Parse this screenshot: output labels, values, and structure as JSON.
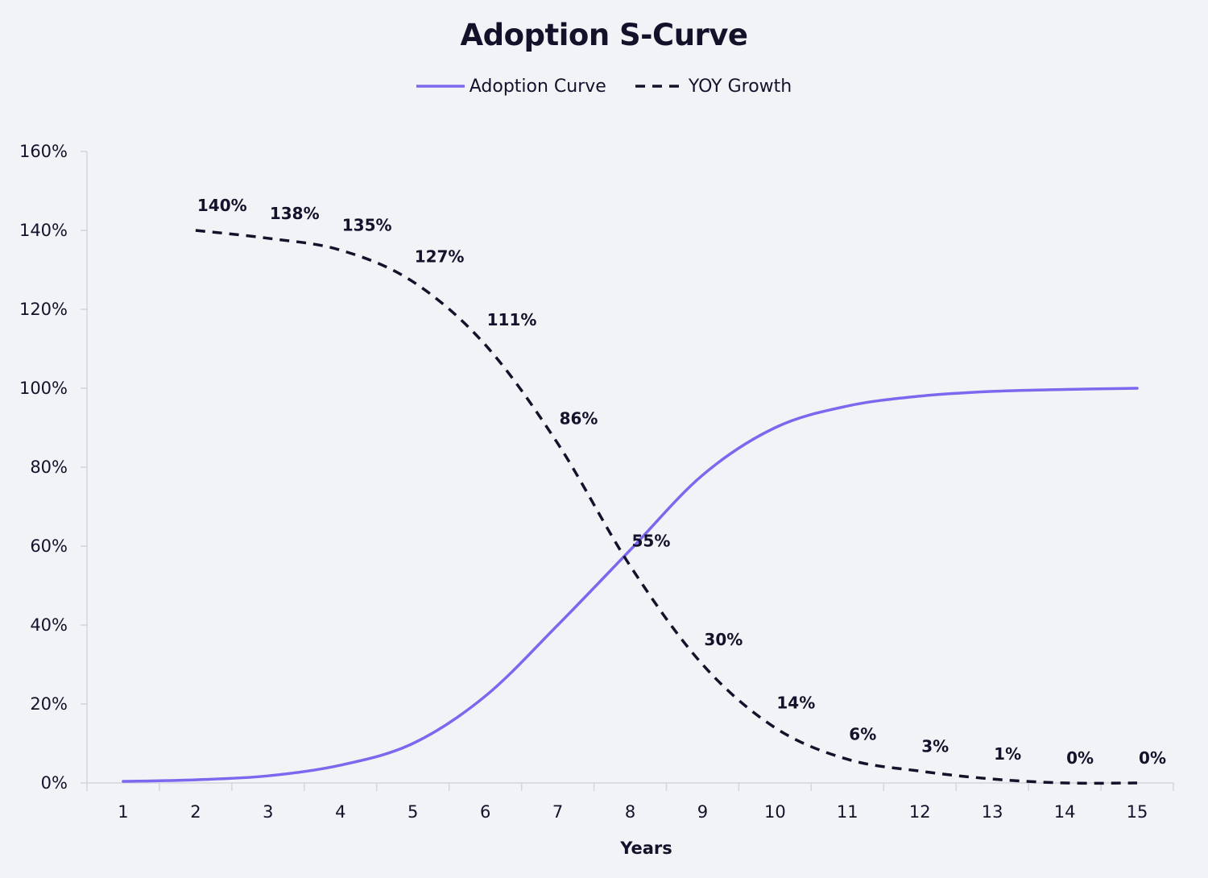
{
  "chart_data": {
    "type": "line",
    "title": "Adoption S-Curve",
    "xlabel": "Years",
    "ylabel": "",
    "x": [
      1,
      2,
      3,
      4,
      5,
      6,
      7,
      8,
      9,
      10,
      11,
      12,
      13,
      14,
      15
    ],
    "ylim": [
      0,
      160
    ],
    "yticks": [
      0,
      20,
      40,
      60,
      80,
      100,
      120,
      140,
      160
    ],
    "ytick_labels": [
      "0%",
      "20%",
      "40%",
      "60%",
      "80%",
      "100%",
      "120%",
      "140%",
      "160%"
    ],
    "legend_position": "top-center",
    "grid": false,
    "series": [
      {
        "name": "Adoption Curve",
        "color": "#7b68ee",
        "style": "solid",
        "values": [
          0.4,
          0.8,
          1.8,
          4.5,
          10,
          22,
          40,
          59,
          78,
          90,
          95.5,
          98,
          99.2,
          99.7,
          100
        ]
      },
      {
        "name": "YOY Growth",
        "color": "#14122b",
        "style": "dashed",
        "x": [
          2,
          3,
          4,
          5,
          6,
          7,
          8,
          9,
          10,
          11,
          12,
          13,
          14,
          15
        ],
        "values": [
          140,
          138,
          135,
          127,
          111,
          86,
          55,
          30,
          14,
          6,
          3,
          1,
          0,
          0
        ],
        "data_labels": [
          "140%",
          "138%",
          "135%",
          "127%",
          "111%",
          "86%",
          "55%",
          "30%",
          "14%",
          "6%",
          "3%",
          "1%",
          "0%",
          "0%"
        ]
      }
    ]
  }
}
